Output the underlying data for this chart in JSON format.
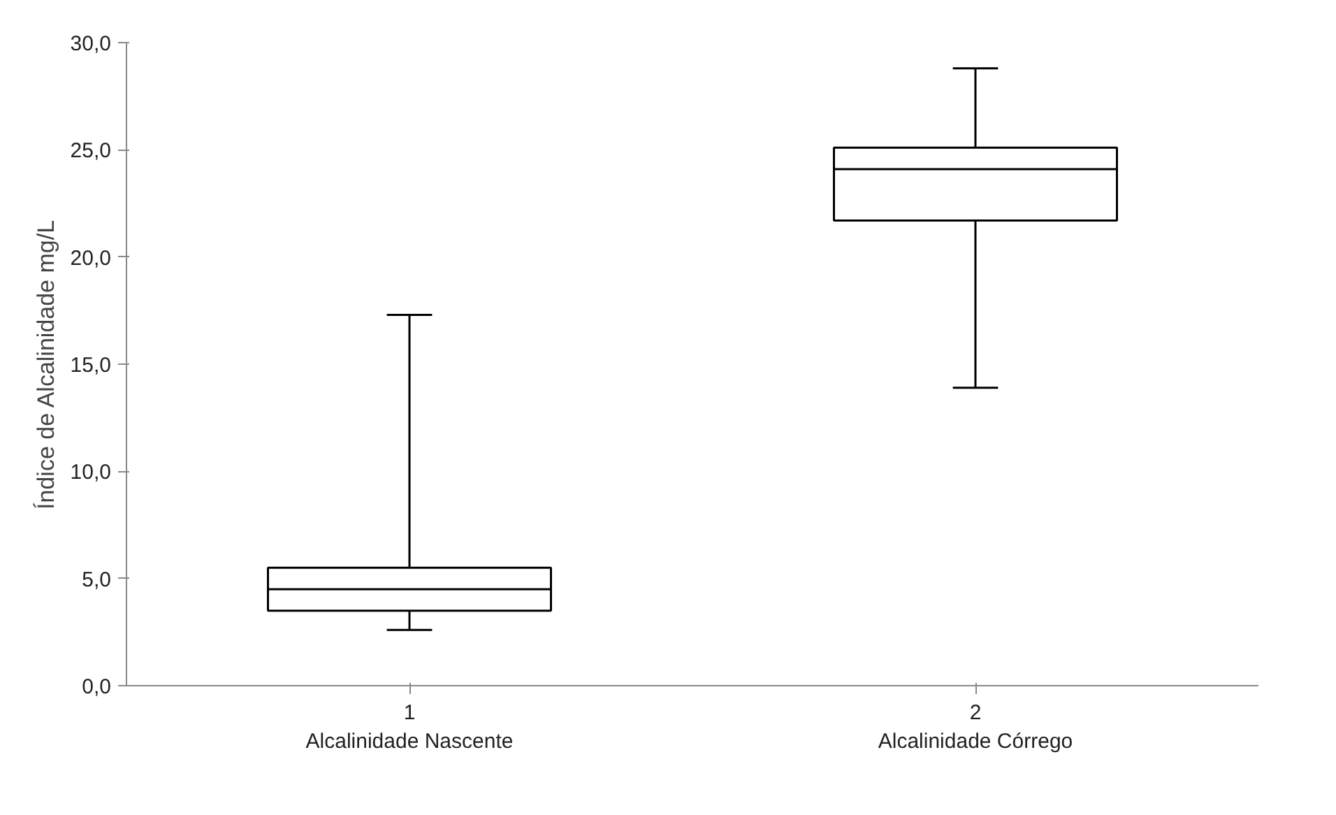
{
  "chart_data": {
    "type": "box",
    "ylabel": "Índice de Alcalinidade mg/L",
    "categories": [
      "1\nAlcalinidade Nascente",
      "2\nAlcalinidade Córrego"
    ],
    "boxes": [
      {
        "low": 2.6,
        "q1": 3.5,
        "median": 4.5,
        "q3": 5.5,
        "high": 17.3
      },
      {
        "low": 13.9,
        "q1": 21.7,
        "median": 24.1,
        "q3": 25.1,
        "high": 28.8
      }
    ],
    "color": "#000000",
    "ylim": [
      0,
      30
    ],
    "yticks": [
      {
        "value": 0,
        "label": "0,0"
      },
      {
        "value": 5,
        "label": "5,0"
      },
      {
        "value": 10,
        "label": "10,0"
      },
      {
        "value": 15,
        "label": "15,0"
      },
      {
        "value": 20,
        "label": "20,0"
      },
      {
        "value": 25,
        "label": "25,0"
      },
      {
        "value": 30,
        "label": "30,0"
      }
    ],
    "grid": false
  }
}
